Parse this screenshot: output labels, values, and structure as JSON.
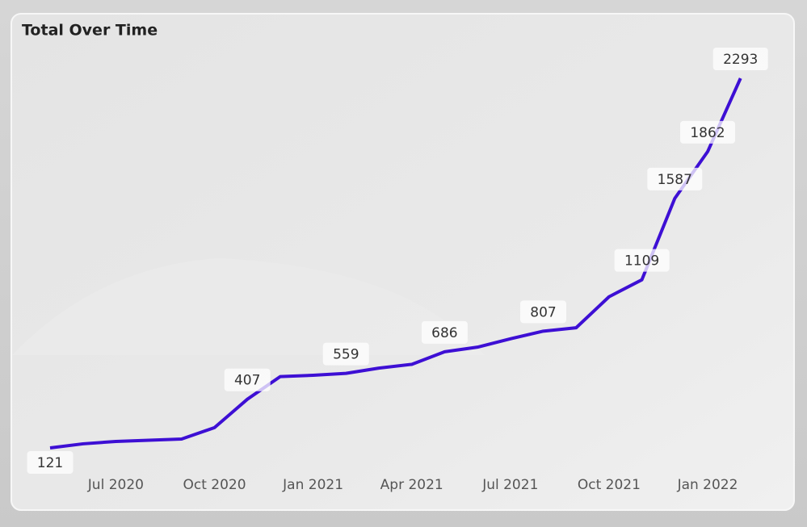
{
  "chart_data": {
    "type": "line",
    "title": "Total Over Time",
    "x": [
      "2020-05",
      "2020-06",
      "2020-07",
      "2020-08",
      "2020-09",
      "2020-10",
      "2020-11",
      "2020-12",
      "2021-01",
      "2021-02",
      "2021-03",
      "2021-04",
      "2021-05",
      "2021-06",
      "2021-07",
      "2021-08",
      "2021-09",
      "2021-10",
      "2021-11",
      "2021-12",
      "2022-01",
      "2022-02"
    ],
    "series": [
      {
        "name": "Total",
        "color": "#3d0fd4",
        "values": [
          121,
          145,
          159,
          166,
          173,
          240,
          407,
          540,
          548,
          559,
          590,
          612,
          686,
          713,
          762,
          807,
          827,
          1009,
          1109,
          1587,
          1862,
          2293
        ],
        "value_labels": [
          "121",
          null,
          null,
          null,
          null,
          null,
          "407",
          null,
          null,
          "559",
          null,
          null,
          "686",
          null,
          null,
          "807",
          null,
          null,
          "1109",
          "1587",
          "1862",
          "2293"
        ]
      }
    ],
    "xticks": [
      {
        "value": "2020-07",
        "label": "Jul 2020"
      },
      {
        "value": "2020-10",
        "label": "Oct 2020"
      },
      {
        "value": "2021-01",
        "label": "Jan 2021"
      },
      {
        "value": "2021-04",
        "label": "Apr 2021"
      },
      {
        "value": "2021-07",
        "label": "Jul 2021"
      },
      {
        "value": "2021-10",
        "label": "Oct 2021"
      },
      {
        "value": "2022-01",
        "label": "Jan 2022"
      }
    ],
    "grid": false
  }
}
